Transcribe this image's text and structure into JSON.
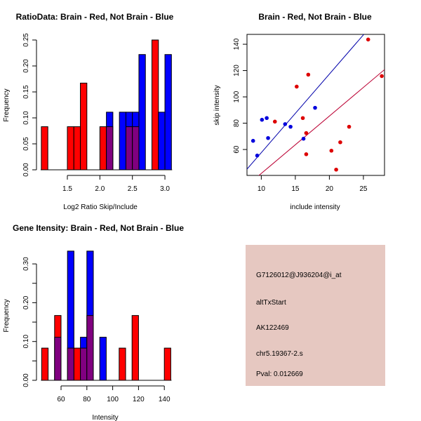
{
  "colors": {
    "red": "#ff0000",
    "blue": "#0000ff",
    "overlap": "#800080",
    "point_red": "#dd0000",
    "point_blue": "#0000dd",
    "line_blue": "#0000aa",
    "line_red": "#bb0033",
    "panel_bg": "#e6c8c1",
    "pval": "#aa0000"
  },
  "chart_data": [
    {
      "type": "bar",
      "title": "RatioData: Brain - Red, Not Brain - Blue",
      "xlabel": "Log2 Ratio Skip/Include",
      "ylabel": "Frequency",
      "bin_width": 0.1,
      "xlim": [
        1.1,
        3.1
      ],
      "ylim": [
        0,
        0.25
      ],
      "xticks": [
        "1.5",
        "2.0",
        "2.5",
        "3.0"
      ],
      "yticks": [
        "0.00",
        "0.05",
        "0.10",
        "0.15",
        "0.20",
        "0.25"
      ],
      "series": [
        {
          "name": "Brain",
          "color": "red",
          "bins": [
            [
              1.1,
              0.083
            ],
            [
              1.5,
              0.083
            ],
            [
              1.6,
              0.083
            ],
            [
              1.7,
              0.167
            ],
            [
              2.0,
              0.083
            ],
            [
              2.1,
              0.083
            ],
            [
              2.4,
              0.083
            ],
            [
              2.5,
              0.083
            ],
            [
              2.8,
              0.25
            ]
          ]
        },
        {
          "name": "Not Brain",
          "color": "blue",
          "bins": [
            [
              2.1,
              0.111
            ],
            [
              2.3,
              0.111
            ],
            [
              2.4,
              0.111
            ],
            [
              2.5,
              0.111
            ],
            [
              2.6,
              0.222
            ],
            [
              2.9,
              0.111
            ],
            [
              3.0,
              0.222
            ]
          ]
        }
      ]
    },
    {
      "type": "scatter",
      "title": "Brain - Red, Not Brain - Blue",
      "xlabel": "include intensity",
      "ylabel": "skip intensity",
      "xlim": [
        7.9,
        28.1
      ],
      "ylim": [
        40.3,
        147.5
      ],
      "xticks": [
        "10",
        "15",
        "20",
        "25"
      ],
      "yticks": [
        "60",
        "80",
        "100",
        "120",
        "140"
      ],
      "series": [
        {
          "name": "Brain",
          "color": "point_red",
          "points": [
            [
              12.0,
              81.2
            ],
            [
              15.2,
              107.8
            ],
            [
              16.9,
              116.9
            ],
            [
              16.1,
              83.9
            ],
            [
              16.6,
              72.5
            ],
            [
              16.6,
              56.4
            ],
            [
              20.3,
              59.1
            ],
            [
              21.0,
              44.7
            ],
            [
              21.6,
              65.5
            ],
            [
              22.9,
              77.3
            ],
            [
              25.7,
              143.6
            ],
            [
              27.7,
              115.8
            ]
          ],
          "line": {
            "intercept": -1.8,
            "slope": 4.36,
            "color": "line_red"
          }
        },
        {
          "name": "Not Brain",
          "color": "point_blue",
          "points": [
            [
              8.8,
              66.6
            ],
            [
              9.4,
              55.4
            ],
            [
              10.1,
              82.6
            ],
            [
              10.8,
              83.9
            ],
            [
              11.0,
              68.7
            ],
            [
              13.5,
              79.3
            ],
            [
              14.3,
              77.3
            ],
            [
              16.2,
              68.2
            ],
            [
              17.9,
              91.7
            ]
          ],
          "line": {
            "intercept": -2.1,
            "slope": 5.97,
            "color": "line_blue"
          }
        }
      ]
    },
    {
      "type": "bar",
      "title": "Gene Itensity: Brain - Red, Not Brain - Blue",
      "xlabel": "Intensity",
      "ylabel": "Frequency",
      "bin_width": 5,
      "xlim": [
        45,
        145
      ],
      "ylim": [
        0,
        0.3
      ],
      "xticks": [
        "60",
        "80",
        "100",
        "120",
        "140"
      ],
      "yticks": [
        "0.00",
        "",
        "0.10",
        "",
        "0.20",
        "",
        "0.30"
      ],
      "series": [
        {
          "name": "Brain",
          "color": "red",
          "bins": [
            [
              45,
              0.083
            ],
            [
              55,
              0.167
            ],
            [
              65,
              0.083
            ],
            [
              70,
              0.083
            ],
            [
              75,
              0.083
            ],
            [
              80,
              0.167
            ],
            [
              105,
              0.083
            ],
            [
              115,
              0.167
            ],
            [
              140,
              0.083
            ]
          ]
        },
        {
          "name": "Not Brain",
          "color": "blue",
          "bins": [
            [
              55,
              0.111
            ],
            [
              65,
              0.333
            ],
            [
              75,
              0.111
            ],
            [
              80,
              0.333
            ],
            [
              90,
              0.111
            ]
          ]
        }
      ]
    }
  ],
  "info_panel": {
    "probe": "G7126012@J936204@i_at",
    "event": "altTxStart",
    "accession": "AK122469",
    "locus": "chr5.19367-2.s",
    "pval": "Pval: 0.012669"
  }
}
